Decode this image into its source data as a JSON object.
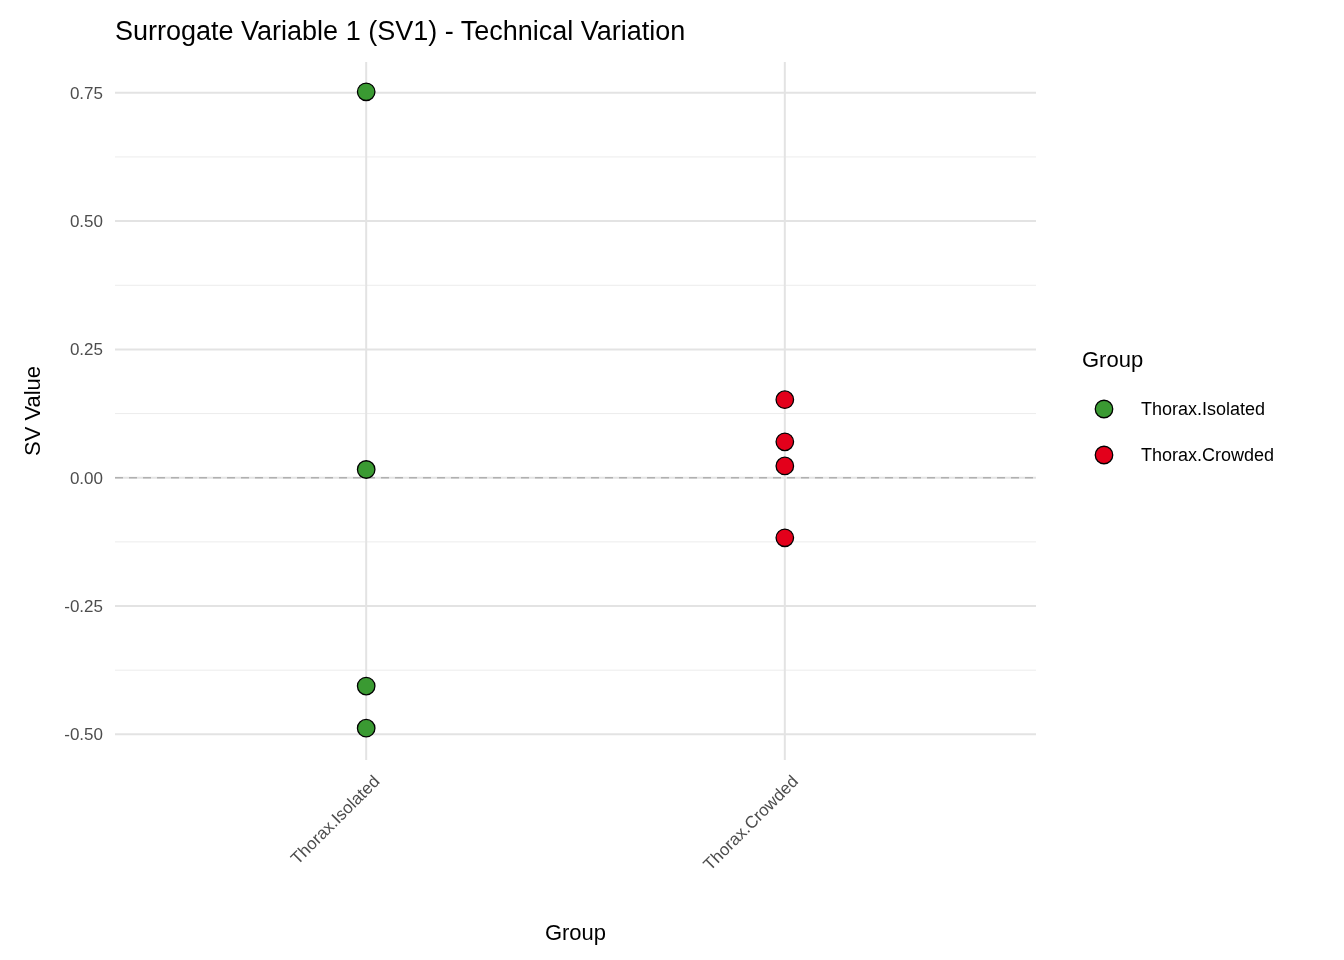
{
  "chart_data": {
    "type": "scatter",
    "title": "Surrogate Variable 1 (SV1) - Technical Variation",
    "xlabel": "Group",
    "ylabel": "SV Value",
    "legend_title": "Group",
    "categories": [
      "Thorax.Isolated",
      "Thorax.Crowded"
    ],
    "series": [
      {
        "name": "Thorax.Isolated",
        "color": "#3a9a32",
        "x": [
          "Thorax.Isolated",
          "Thorax.Isolated",
          "Thorax.Isolated",
          "Thorax.Isolated"
        ],
        "values": [
          0.752,
          0.016,
          -0.406,
          -0.488
        ]
      },
      {
        "name": "Thorax.Crowded",
        "color": "#e3001b",
        "x": [
          "Thorax.Crowded",
          "Thorax.Crowded",
          "Thorax.Crowded",
          "Thorax.Crowded"
        ],
        "values": [
          0.152,
          0.07,
          0.023,
          -0.117
        ]
      }
    ],
    "ylim": [
      -0.55,
      0.81
    ],
    "yticks": [
      {
        "value": -0.5,
        "label": "-0.50"
      },
      {
        "value": -0.25,
        "label": "-0.25"
      },
      {
        "value": 0,
        "label": "0.00"
      },
      {
        "value": 0.25,
        "label": "0.25"
      },
      {
        "value": 0.5,
        "label": "0.50"
      },
      {
        "value": 0.75,
        "label": "0.75"
      }
    ],
    "ref_lines": [
      {
        "axis": "y",
        "value": 0,
        "color": "#b0b0b0",
        "line_style": "dashed"
      }
    ],
    "grid": true,
    "legend": "right",
    "marker": "circle"
  }
}
